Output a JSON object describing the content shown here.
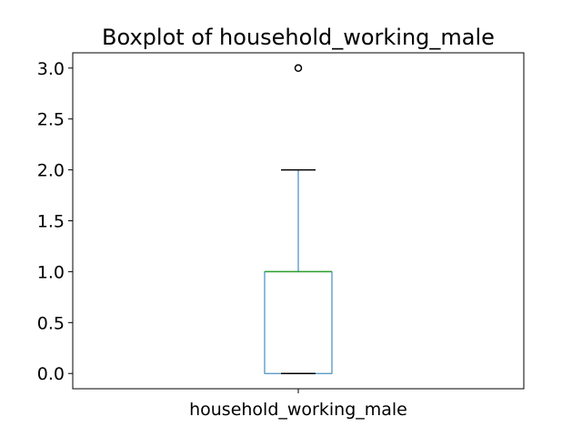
{
  "chart_data": {
    "type": "box",
    "title": "Boxplot of household_working_male",
    "categories": [
      "household_working_male"
    ],
    "boxes": [
      {
        "category": "household_working_male",
        "whisker_low": 0.0,
        "q1": 0.0,
        "median": 1.0,
        "q3": 1.0,
        "whisker_high": 2.0,
        "outliers": [
          3.0
        ]
      }
    ],
    "ylim": [
      -0.15,
      3.15
    ],
    "yticks": [
      0.0,
      0.5,
      1.0,
      1.5,
      2.0,
      2.5,
      3.0
    ],
    "ytick_labels": [
      "0.0",
      "0.5",
      "1.0",
      "1.5",
      "2.0",
      "2.5",
      "3.0"
    ],
    "grid": false,
    "colors": {
      "box": "#1f77b4",
      "whisker": "#1f77b4",
      "median": "#2ca02c",
      "caps": "#000000",
      "outlier_edge": "#000000"
    }
  }
}
